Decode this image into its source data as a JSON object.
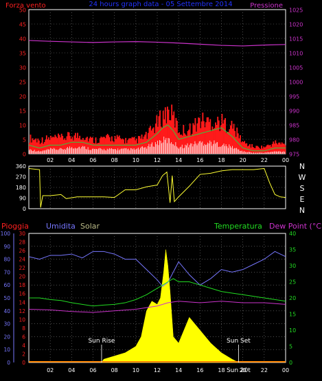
{
  "chart_data": [
    {
      "type": "line",
      "title": "24 hours graph data - 05 Settembre 2014",
      "left_axis_label": "Forza vento",
      "right_axis_label": "Pressione",
      "colors": {
        "gust": "#ff1a1a",
        "wind": "#2ecc40",
        "avg": "#ffffff",
        "pressure": "#cc33cc",
        "title": "#2233ff",
        "frame": "#ffffff",
        "grid": "#808080"
      },
      "x_ticks": [
        "02",
        "04",
        "06",
        "08",
        "10",
        "12",
        "14",
        "16",
        "18",
        "20",
        "22",
        "00"
      ],
      "x_range": [
        0,
        24
      ],
      "left_ticks": [
        0,
        5,
        10,
        15,
        20,
        25,
        30,
        35,
        40,
        45,
        50
      ],
      "left_range": [
        0,
        50
      ],
      "right_ticks": [
        975,
        980,
        985,
        990,
        995,
        1000,
        1005,
        1010,
        1015,
        1020,
        1025
      ],
      "right_range": [
        975,
        1025
      ],
      "pressure": {
        "x": [
          0,
          2,
          4,
          6,
          8,
          10,
          12,
          14,
          16,
          18,
          20,
          22,
          24
        ],
        "y": [
          1014.3,
          1014.0,
          1013.8,
          1013.6,
          1013.8,
          1013.9,
          1013.7,
          1013.4,
          1013.0,
          1012.6,
          1012.4,
          1012.7,
          1012.9
        ]
      },
      "wind_envelope": {
        "x": [
          0,
          1,
          2,
          3,
          4,
          5,
          6,
          7,
          8,
          9,
          10,
          11,
          12,
          12.5,
          13,
          13.5,
          14,
          15,
          16,
          17,
          18,
          19,
          20,
          21,
          22,
          23,
          24
        ],
        "gust": [
          7,
          6,
          7,
          7,
          8,
          8,
          6,
          7,
          7,
          6,
          6,
          8,
          14,
          17,
          19,
          16,
          10,
          11,
          15,
          14,
          14,
          12,
          5,
          3,
          3,
          5,
          4
        ],
        "wind": [
          3,
          2,
          3,
          3,
          4,
          4,
          3,
          3,
          3,
          3,
          3,
          4,
          7,
          9,
          10,
          8,
          5,
          6,
          7,
          8,
          9,
          6,
          2,
          1,
          1,
          2,
          2
        ],
        "avg": [
          2,
          1,
          2,
          2,
          3,
          3,
          2,
          2,
          2,
          2,
          2,
          3,
          5,
          6,
          6,
          5,
          3,
          4,
          5,
          5,
          4,
          3,
          1,
          0.5,
          0.5,
          1,
          1
        ]
      }
    },
    {
      "type": "line",
      "title": "",
      "right_labels": [
        "N",
        "W",
        "S",
        "E",
        "N"
      ],
      "left_ticks": [
        0,
        90,
        180,
        270,
        360
      ],
      "left_range": [
        0,
        360
      ],
      "x_ticks": [
        "02",
        "04",
        "06",
        "08",
        "10",
        "12",
        "14",
        "16",
        "18",
        "20",
        "22",
        "00"
      ],
      "x_range": [
        0,
        24
      ],
      "color": "#ffff33",
      "direction": {
        "x": [
          0,
          1,
          1.1,
          1.3,
          2,
          3,
          3.5,
          4.5,
          5.5,
          7,
          8,
          9,
          10,
          11,
          12,
          12.5,
          12.9,
          13.2,
          13.4,
          13.6,
          14,
          15,
          16,
          17,
          18,
          19,
          20,
          21,
          22,
          22.5,
          23,
          23.5,
          24
        ],
        "y": [
          340,
          330,
          10,
          110,
          110,
          120,
          85,
          100,
          100,
          100,
          95,
          160,
          160,
          185,
          200,
          280,
          310,
          50,
          280,
          60,
          100,
          190,
          290,
          300,
          320,
          330,
          330,
          330,
          340,
          220,
          120,
          100,
          95
        ]
      }
    },
    {
      "type": "line",
      "title": "",
      "series_labels": [
        "Pioggia",
        "Umidita",
        "Solar",
        "Temperatura",
        "Dew Point (°C)"
      ],
      "series_colors": {
        "rain": "#ff2020",
        "humidity": "#7777ff",
        "solar": "#ffff00",
        "temperature": "#22dd22",
        "dewpoint": "#cc33cc"
      },
      "x_ticks": [
        "02",
        "04",
        "06",
        "08",
        "10",
        "12",
        "14",
        "16",
        "18",
        "20",
        "22",
        "00"
      ],
      "x_range": [
        0,
        24
      ],
      "humidity_ticks": [
        0,
        10,
        20,
        30,
        40,
        50,
        60,
        70,
        80,
        90,
        100
      ],
      "humidity_range": [
        0,
        100
      ],
      "rain_ticks": [
        0,
        2,
        4,
        6,
        8,
        10,
        12,
        14,
        16,
        18,
        20,
        22,
        24,
        26,
        28,
        30
      ],
      "rain_range": [
        0,
        30
      ],
      "temp_ticks": [
        0,
        5,
        10,
        15,
        20,
        25,
        30,
        35,
        40
      ],
      "temp_range": [
        0,
        40
      ],
      "annotations": {
        "sunrise": "Sun Rise",
        "sunset": "Sun Set",
        "sunset_time": "Sun 20t"
      },
      "sunrise_x": 6.8,
      "sunset_x": 19.6,
      "humidity": {
        "x": [
          0,
          1,
          2,
          3,
          4,
          5,
          6,
          7,
          8,
          9,
          10,
          11,
          12,
          12.5,
          13,
          13.5,
          14,
          15,
          16,
          17,
          18,
          19,
          20,
          21,
          22,
          23,
          24
        ],
        "y": [
          82,
          80,
          83,
          83,
          84,
          81,
          86,
          86,
          84,
          80,
          80,
          72,
          64,
          59,
          62,
          70,
          78,
          68,
          60,
          65,
          72,
          70,
          72,
          76,
          80,
          86,
          82
        ]
      },
      "temperature": {
        "x": [
          0,
          1,
          2,
          3,
          4,
          5,
          6,
          7,
          8,
          9,
          10,
          11,
          12,
          12.5,
          13,
          13.5,
          14,
          15,
          16,
          17,
          18,
          19,
          20,
          21,
          22,
          23,
          24
        ],
        "y": [
          20,
          20,
          19.5,
          19.2,
          18.5,
          18,
          17.5,
          17.8,
          18,
          18.5,
          19.5,
          21,
          23,
          24,
          25,
          26,
          25,
          25,
          24,
          23,
          22,
          21.5,
          21,
          20.5,
          20,
          19.5,
          19
        ]
      },
      "dewpoint": {
        "x": [
          0,
          2,
          4,
          6,
          8,
          10,
          12,
          13,
          14,
          16,
          18,
          20,
          22,
          24
        ],
        "y": [
          16.5,
          16.3,
          15.8,
          15.5,
          16,
          16.5,
          17.5,
          18.5,
          19,
          18.5,
          19,
          18.5,
          18.5,
          18
        ]
      },
      "solar": {
        "x": [
          6.8,
          7,
          8,
          9,
          10,
          10.5,
          11,
          11.5,
          12,
          12.3,
          12.6,
          12.8,
          13,
          13.2,
          13.5,
          14,
          14.5,
          15,
          15.5,
          16,
          16.5,
          17,
          18,
          19,
          19.6
        ],
        "y": [
          0,
          1,
          2,
          3,
          5,
          8,
          16,
          19,
          18,
          20,
          28,
          35,
          30,
          22,
          8,
          6,
          10,
          14,
          12,
          10,
          8,
          6,
          3,
          1,
          0
        ]
      },
      "rain": {
        "x": [
          0,
          24
        ],
        "y": [
          0,
          0
        ]
      }
    }
  ]
}
